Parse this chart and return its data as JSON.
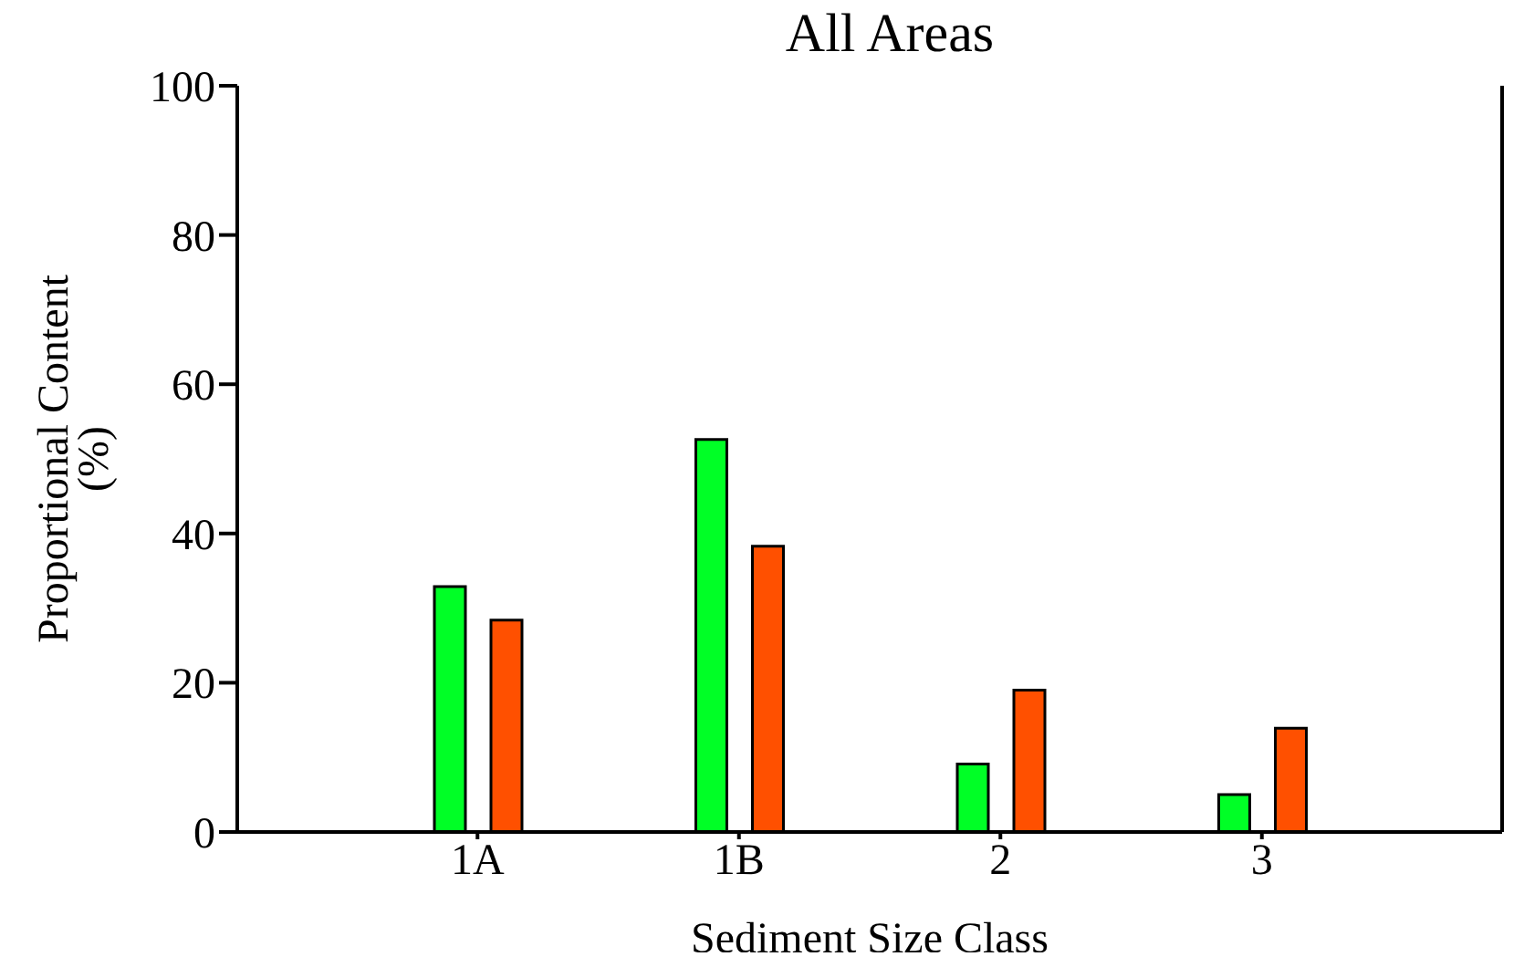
{
  "chart_data": {
    "type": "bar",
    "title": "All Areas",
    "xlabel": "Sediment Size Class",
    "ylabel": "Proportional Content\n(%)",
    "categories": [
      "1A",
      "1B",
      "2",
      "3"
    ],
    "series": [
      {
        "color": "#00ff26",
        "values": [
          32.9,
          52.6,
          9.1,
          5.0
        ]
      },
      {
        "color": "#ff5000",
        "values": [
          28.4,
          38.3,
          19.0,
          13.9
        ]
      }
    ],
    "ylim": [
      0,
      100
    ],
    "yticks": [
      0,
      20,
      40,
      60,
      80,
      100
    ],
    "grid": false,
    "legend": false
  }
}
